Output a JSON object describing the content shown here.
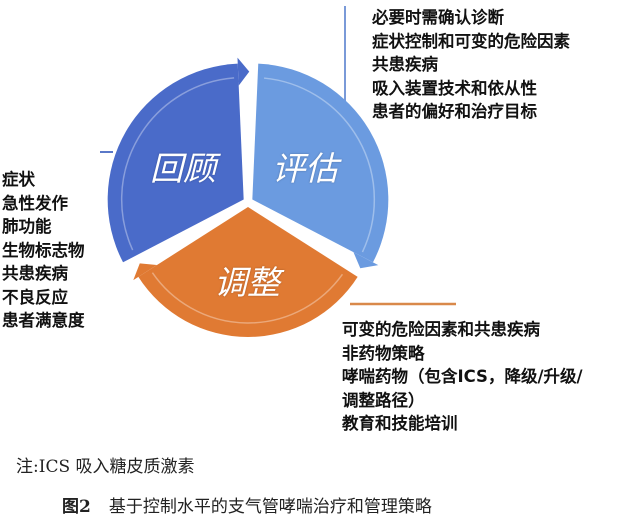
{
  "cycle": {
    "segments": [
      {
        "label": "回顾",
        "color": "#4a6bc9"
      },
      {
        "label": "评估",
        "color": "#6b9be0"
      },
      {
        "label": "调整",
        "color": "#e07a33"
      }
    ]
  },
  "assess_items": [
    "必要时需确认诊断",
    "症状控制和可变的危险因素",
    "共患疾病",
    "吸入装置技术和依从性",
    "患者的偏好和治疗目标"
  ],
  "review_items": [
    "症状",
    "急性发作",
    "肺功能",
    "生物标志物",
    "共患疾病",
    "不良反应",
    "患者满意度"
  ],
  "adjust_items": [
    "可变的危险因素和共患疾病",
    "非药物策略",
    "哮喘药物（包含ICS，降级/升级/",
    "调整路径）",
    "教育和技能培训"
  ],
  "note": "注:ICS 吸入糖皮质激素",
  "caption": {
    "number": "图2",
    "text": "基于控制水平的支气管哮喘治疗和管理策略"
  }
}
